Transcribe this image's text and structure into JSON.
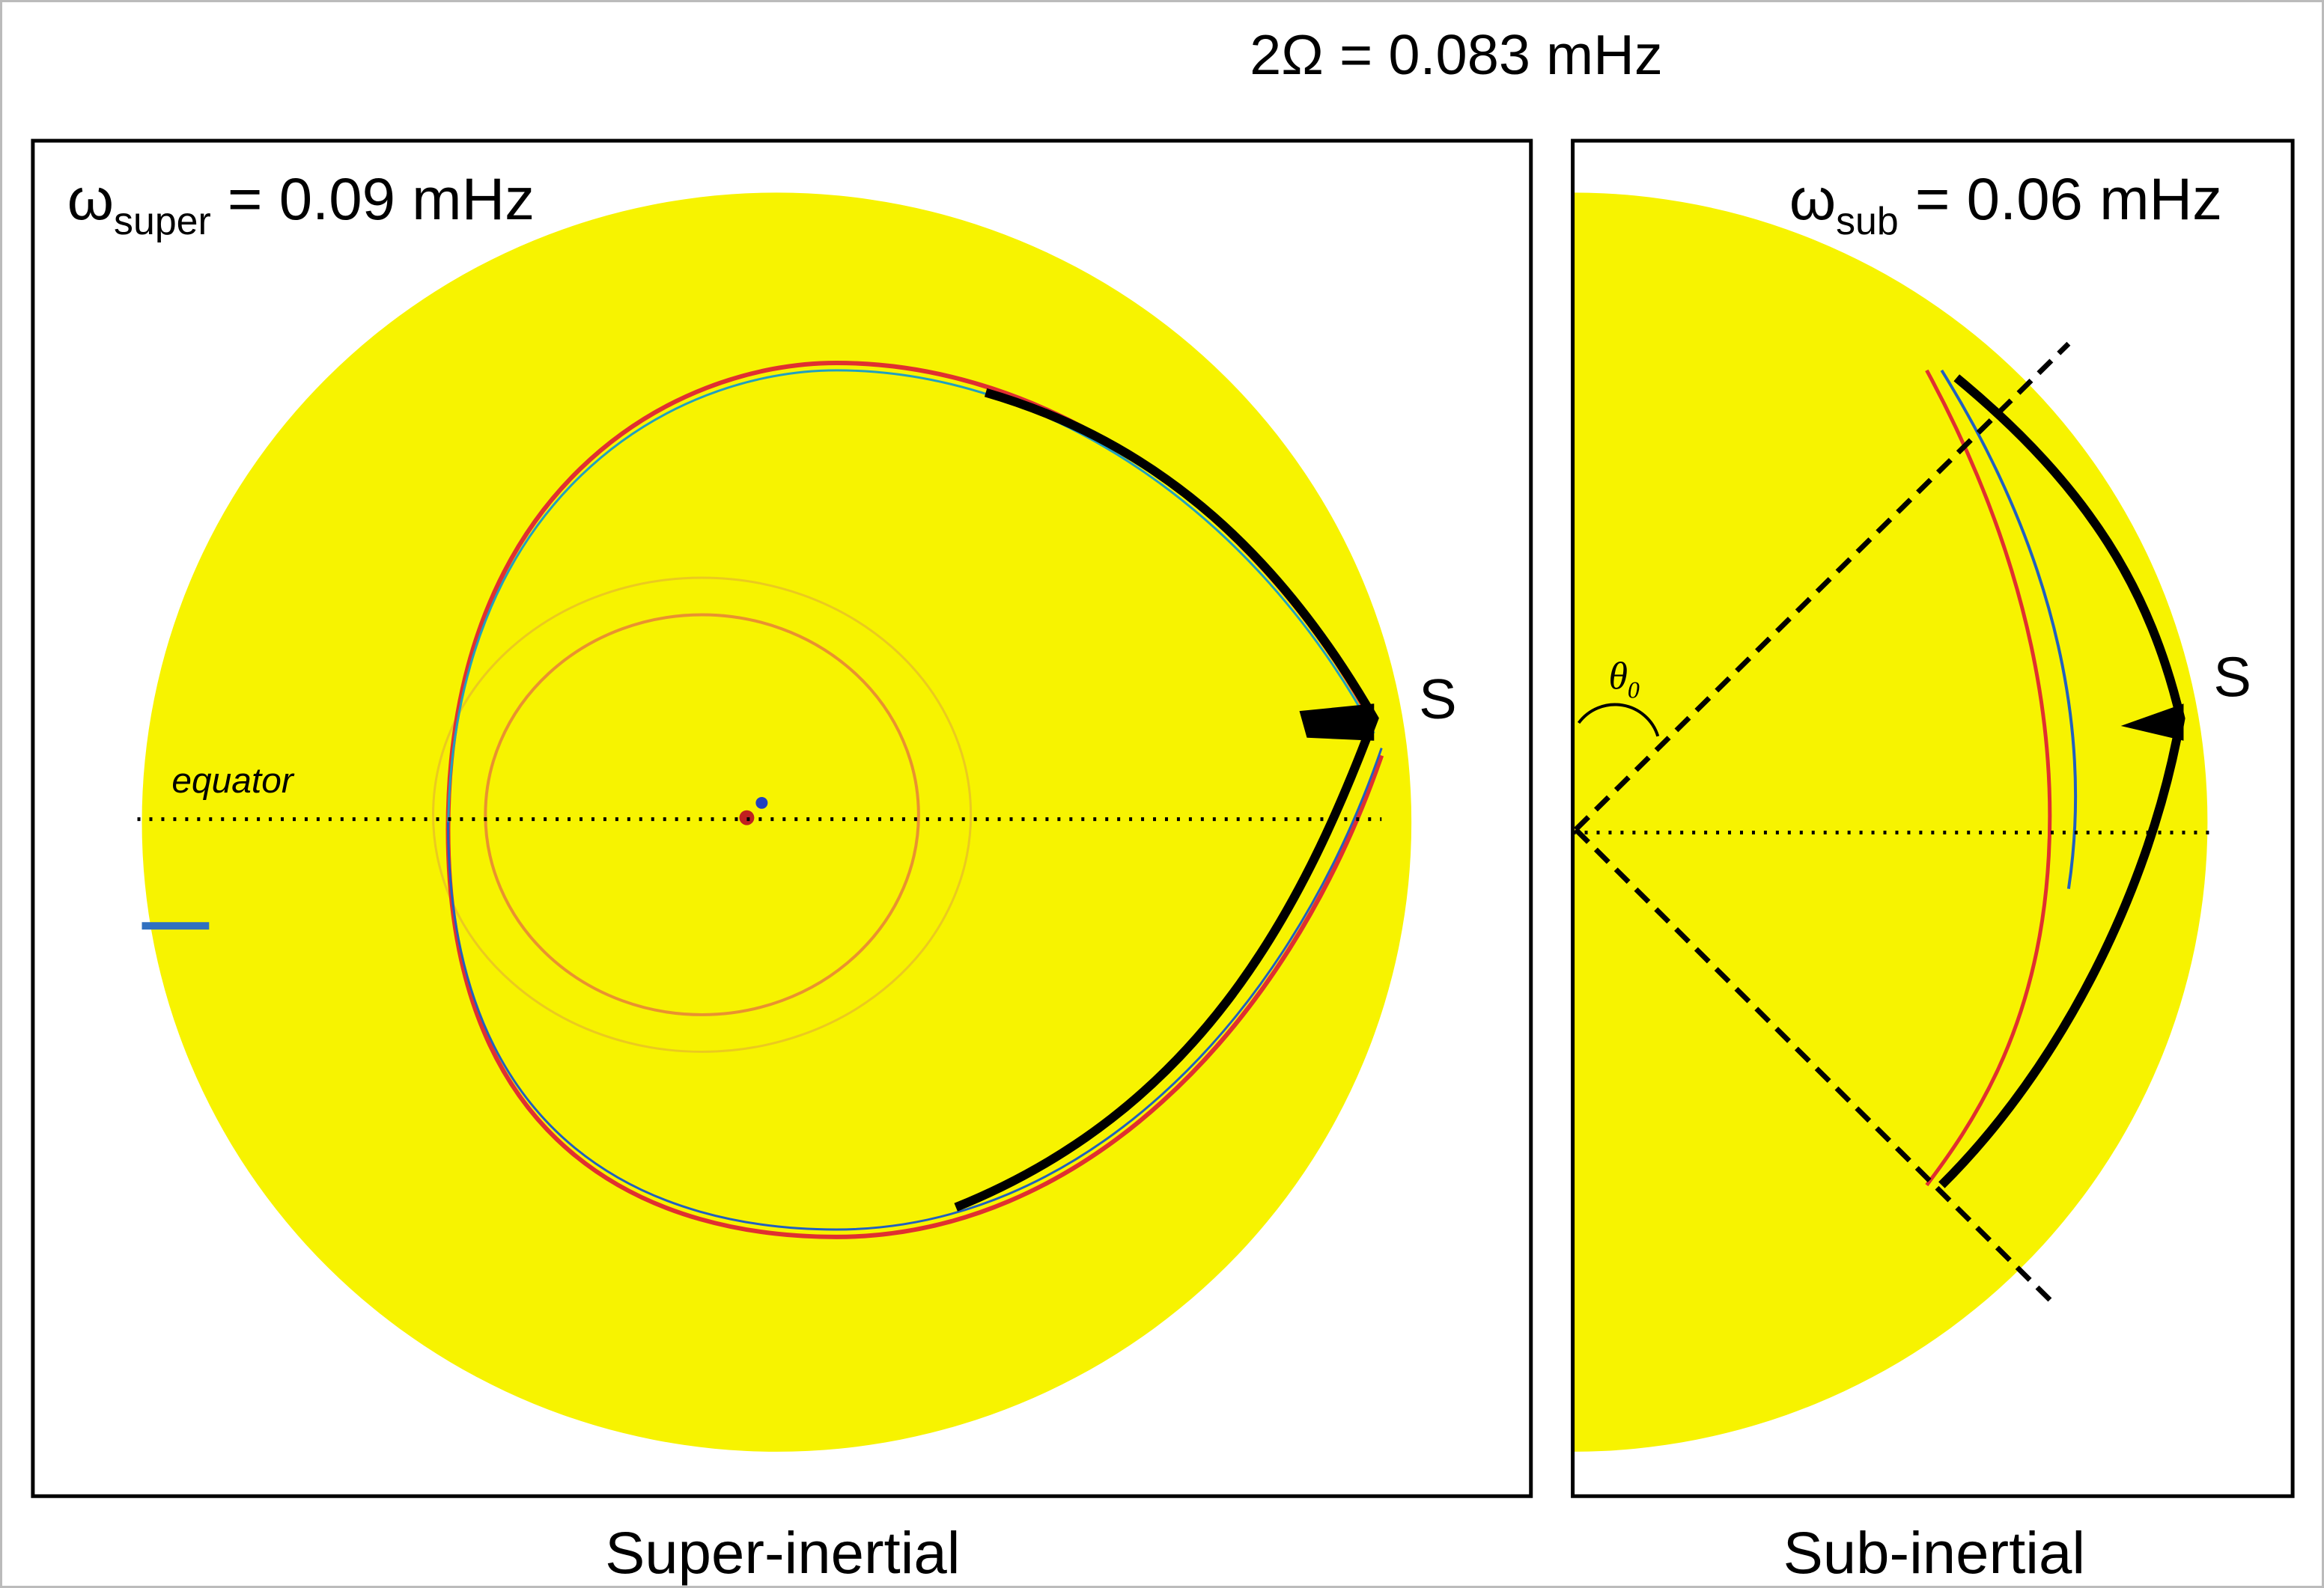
{
  "header": {
    "title": "2Ω = 0.083 mHz"
  },
  "panels": [
    {
      "omega": "ω",
      "subscript": "super",
      "value": " = 0.09 mHz",
      "source": "S",
      "equator": "equator",
      "caption": "Super-inertial"
    },
    {
      "omega": "ω",
      "subscript": "sub",
      "value": " = 0.06 mHz",
      "source": "S",
      "angle": "θ",
      "angle_subscript": "0",
      "caption": "Sub-inertial"
    }
  ]
}
